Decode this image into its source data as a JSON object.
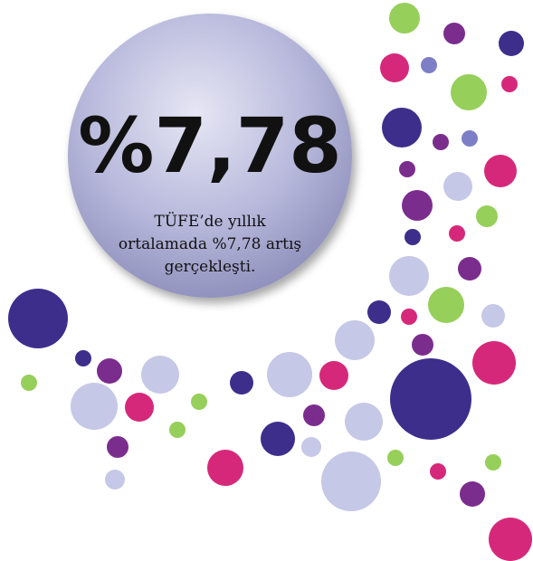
{
  "headline": "%7,78",
  "caption_lines": [
    "TÜFE’de yıllık",
    "ortalamada %7,78 artış",
    "gerçekleşti."
  ]
}
